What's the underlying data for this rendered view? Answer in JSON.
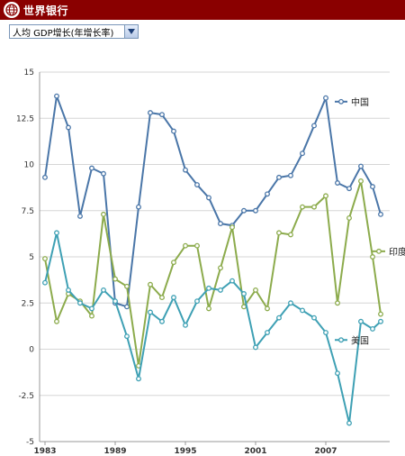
{
  "header": {
    "brand": "世界银行",
    "logo_icon": "globe-icon"
  },
  "selector": {
    "value": "人均 GDP增长(年增长率)",
    "icon": "chevron-down-icon"
  },
  "colors": {
    "header_bg": "#8a0000",
    "china": "#4a76a8",
    "india": "#8cab4c",
    "usa": "#3ea0b4"
  },
  "chart_data": {
    "type": "line",
    "title": "",
    "xlabel": "",
    "ylabel": "",
    "x": [
      1983,
      1984,
      1985,
      1986,
      1987,
      1988,
      1989,
      1990,
      1991,
      1992,
      1993,
      1994,
      1995,
      1996,
      1997,
      1998,
      1999,
      2000,
      2001,
      2002,
      2003,
      2004,
      2005,
      2006,
      2007,
      2008,
      2009,
      2010,
      2011
    ],
    "xticks": [
      "1983",
      "1989",
      "1995",
      "2001",
      "2007"
    ],
    "yticks": [
      "15",
      "12.5",
      "10",
      "7.5",
      "5",
      "2.5",
      "0",
      "-2.5",
      "-5"
    ],
    "ylim": [
      -5,
      15
    ],
    "grid": true,
    "series": [
      {
        "name": "中国",
        "color": "#4a76a8",
        "values": [
          9.3,
          13.7,
          12.0,
          7.2,
          9.8,
          9.5,
          2.5,
          2.3,
          7.7,
          12.8,
          12.7,
          11.8,
          9.7,
          8.9,
          8.2,
          6.8,
          6.7,
          7.5,
          7.5,
          8.4,
          9.3,
          9.4,
          10.6,
          12.1,
          13.6,
          9.0,
          8.7,
          9.9,
          8.8
        ]
      },
      {
        "name": "印度",
        "color": "#8cab4c",
        "values": [
          4.9,
          1.5,
          3.0,
          2.6,
          1.8,
          7.3,
          3.8,
          3.4,
          -0.9,
          3.5,
          2.8,
          4.7,
          5.6,
          5.6,
          2.2,
          4.4,
          6.6,
          2.3,
          3.2,
          2.2,
          6.3,
          6.2,
          7.7,
          7.7,
          8.3,
          2.5,
          7.1,
          9.1,
          5.0
        ]
      },
      {
        "name": "美国",
        "color": "#3ea0b4",
        "values": [
          3.6,
          6.3,
          3.2,
          2.5,
          2.2,
          3.2,
          2.6,
          0.7,
          -1.6,
          2.0,
          1.5,
          2.8,
          1.3,
          2.6,
          3.3,
          3.2,
          3.7,
          3.0,
          0.1,
          0.9,
          1.7,
          2.5,
          2.1,
          1.7,
          0.9,
          -1.3,
          -4.0,
          1.5,
          1.1
        ]
      }
    ],
    "series_end": {
      "中国": 7.3,
      "印度": 1.9,
      "美国": 1.5
    },
    "legend_placement": "right, at series end"
  }
}
